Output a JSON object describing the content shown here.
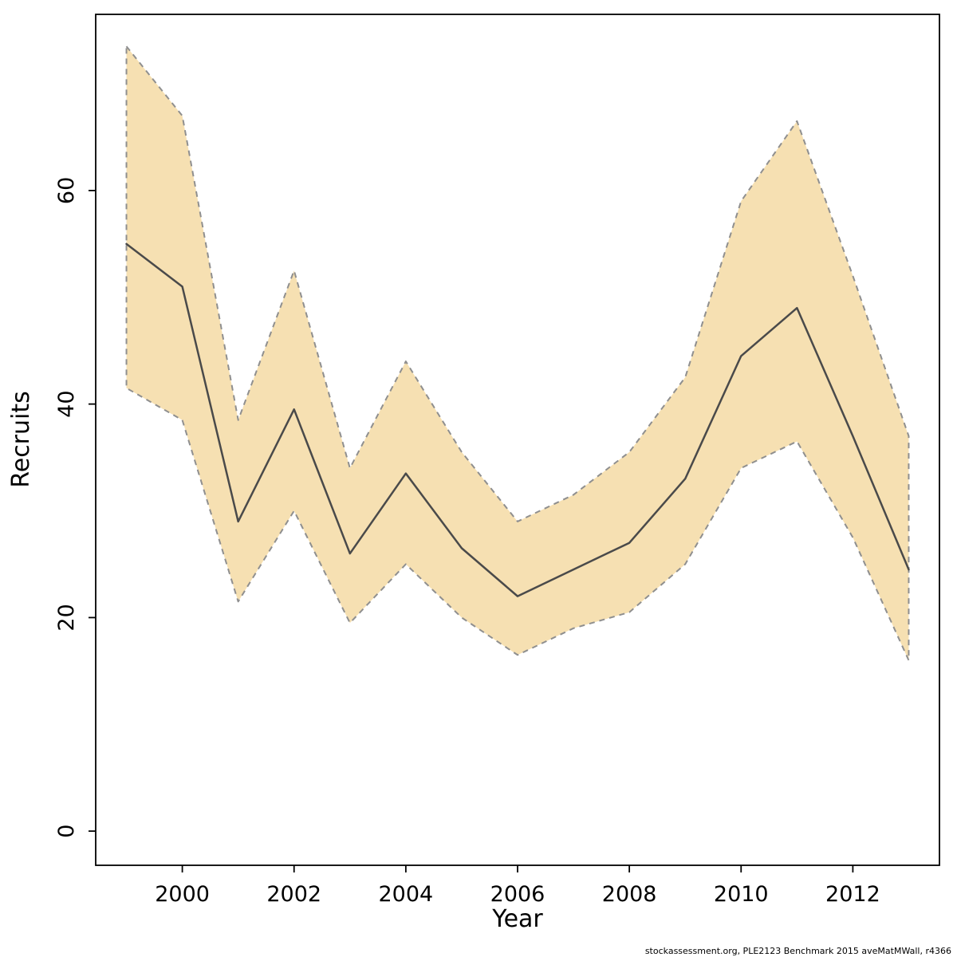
{
  "chart_data": {
    "type": "line",
    "title": "",
    "xlabel": "Year",
    "ylabel": "Recruits",
    "x": [
      1999,
      2000,
      2001,
      2002,
      2003,
      2004,
      2005,
      2006,
      2007,
      2008,
      2009,
      2010,
      2011,
      2012,
      2013
    ],
    "series": [
      {
        "name": "estimate",
        "values": [
          55,
          51,
          29,
          39.5,
          26,
          33.5,
          26.5,
          22,
          24.5,
          27,
          33,
          44.5,
          49,
          37,
          24.5
        ]
      },
      {
        "name": "upper_ci",
        "values": [
          73.5,
          67,
          38.5,
          52.5,
          34,
          44,
          35.5,
          29,
          31.5,
          35.5,
          42.5,
          59,
          66.5,
          52,
          37
        ]
      },
      {
        "name": "lower_ci",
        "values": [
          41.5,
          38.5,
          21.5,
          30,
          19.5,
          25,
          20,
          16.5,
          19,
          20.5,
          25,
          34,
          36.5,
          27.5,
          16
        ]
      }
    ],
    "x_ticks": [
      2000,
      2002,
      2004,
      2006,
      2008,
      2010,
      2012
    ],
    "y_ticks": [
      0,
      20,
      40,
      60
    ],
    "xlim": [
      1998.45,
      2013.55
    ],
    "ylim": [
      -3.2,
      76.5
    ],
    "legend": "none",
    "grid": false,
    "band_fill_color": "#f6e0b2",
    "band_border_color": "#8f8f8f",
    "line_color": "#4a4a4a",
    "box_color": "#000000"
  },
  "footer": {
    "credit": "stockassessment.org, PLE2123  Benchmark  2015  aveMatMWall, r4366"
  }
}
